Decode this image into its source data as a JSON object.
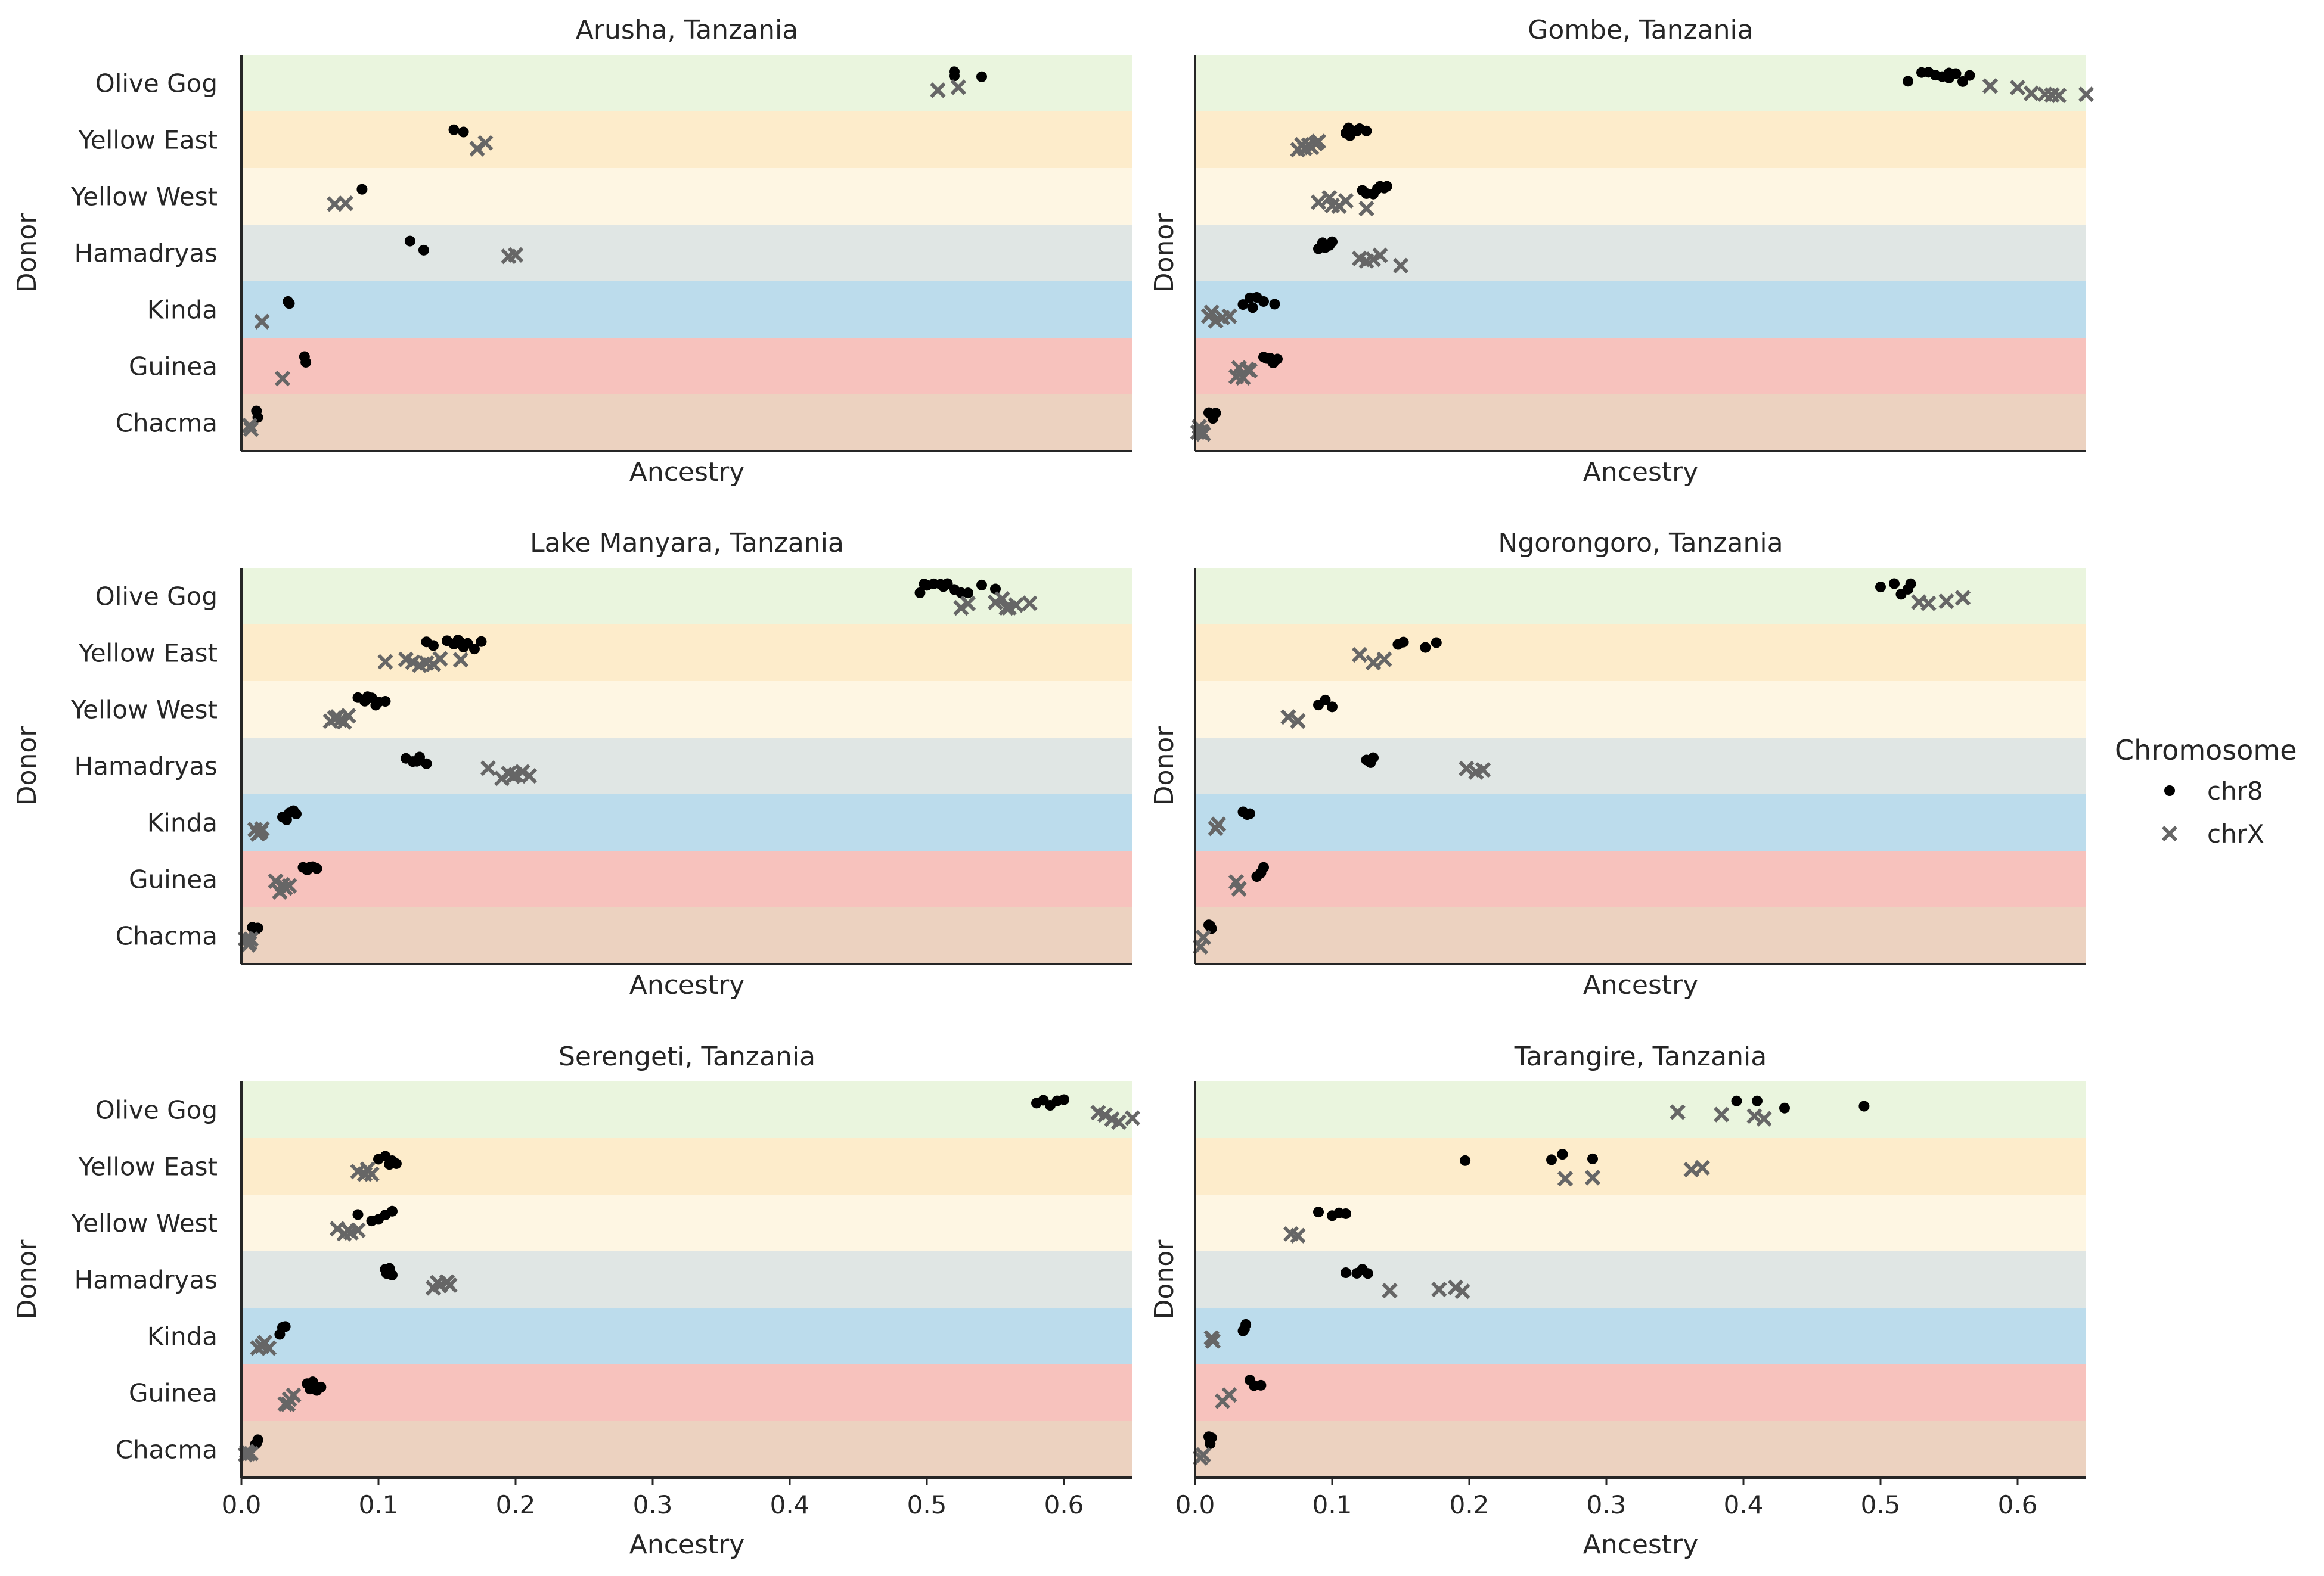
{
  "chart_data": {
    "type": "scatter",
    "donor_categories": [
      "Olive Gog",
      "Yellow East",
      "Yellow West",
      "Hamadryas",
      "Kinda",
      "Guinea",
      "Chacma"
    ],
    "band_colors": {
      "Olive Gog": "#eaf5de",
      "Yellow East": "#fdeccb",
      "Yellow West": "#fef6e3",
      "Hamadryas": "#e0e6e4",
      "Kinda": "#bcdcec",
      "Guinea": "#f7c2bd",
      "Chacma": "#ecd2c0"
    },
    "xlabel": "Ancestry",
    "ylabel": "Donor",
    "xlim": [
      0,
      0.65
    ],
    "x_ticks": [
      0.0,
      0.1,
      0.2,
      0.3,
      0.4,
      0.5,
      0.6
    ],
    "x_tick_labels": [
      "0.0",
      "0.1",
      "0.2",
      "0.3",
      "0.4",
      "0.5",
      "0.6"
    ],
    "grid": false,
    "legend": {
      "title": "Chromosome",
      "position": "right",
      "entries": [
        {
          "name": "chr8",
          "marker": "dot",
          "color": "#000000"
        },
        {
          "name": "chrX",
          "marker": "x",
          "color": "#666666"
        }
      ]
    },
    "panels": [
      {
        "title": "Arusha, Tanzania",
        "series": [
          {
            "name": "chr8",
            "points": {
              "Olive Gog": [
                0.52,
                0.54,
                0.52
              ],
              "Yellow East": [
                0.155,
                0.162
              ],
              "Yellow West": [
                0.088
              ],
              "Hamadryas": [
                0.123,
                0.133
              ],
              "Kinda": [
                0.035,
                0.034
              ],
              "Guinea": [
                0.046,
                0.047
              ],
              "Chacma": [
                0.012,
                0.011
              ]
            }
          },
          {
            "name": "chrX",
            "points": {
              "Olive Gog": [
                0.508,
                0.523
              ],
              "Yellow East": [
                0.172,
                0.178
              ],
              "Yellow West": [
                0.068,
                0.076
              ],
              "Hamadryas": [
                0.195,
                0.2
              ],
              "Kinda": [
                0.015
              ],
              "Guinea": [
                0.03
              ],
              "Chacma": [
                0.006,
                0.007
              ]
            }
          }
        ]
      },
      {
        "title": "Gombe, Tanzania",
        "series": [
          {
            "name": "chr8",
            "points": {
              "Olive Gog": [
                0.52,
                0.53,
                0.54,
                0.545,
                0.55,
                0.555,
                0.535,
                0.56,
                0.565,
                0.55
              ],
              "Yellow East": [
                0.11,
                0.115,
                0.12,
                0.113,
                0.118,
                0.125,
                0.112
              ],
              "Yellow West": [
                0.13,
                0.135,
                0.125,
                0.133,
                0.14,
                0.122,
                0.138
              ],
              "Hamadryas": [
                0.09,
                0.095,
                0.1,
                0.093,
                0.098
              ],
              "Kinda": [
                0.04,
                0.045,
                0.05,
                0.035,
                0.058,
                0.042
              ],
              "Guinea": [
                0.05,
                0.055,
                0.06,
                0.052,
                0.057,
                0.053
              ],
              "Chacma": [
                0.012,
                0.015,
                0.01,
                0.013
              ]
            }
          },
          {
            "name": "chrX",
            "points": {
              "Olive Gog": [
                0.58,
                0.6,
                0.61,
                0.62,
                0.63,
                0.625,
                0.65
              ],
              "Yellow East": [
                0.075,
                0.08,
                0.085,
                0.09,
                0.078,
                0.083,
                0.088
              ],
              "Yellow West": [
                0.09,
                0.1,
                0.105,
                0.11,
                0.125,
                0.098
              ],
              "Hamadryas": [
                0.12,
                0.125,
                0.13,
                0.135,
                0.15
              ],
              "Kinda": [
                0.01,
                0.015,
                0.02,
                0.025,
                0.012
              ],
              "Guinea": [
                0.03,
                0.035,
                0.04,
                0.032,
                0.038
              ],
              "Chacma": [
                0.002,
                0.004,
                0.005,
                0.006,
                0.003
              ]
            }
          }
        ]
      },
      {
        "title": "Lake Manyara, Tanzania",
        "series": [
          {
            "name": "chr8",
            "points": {
              "Olive Gog": [
                0.495,
                0.5,
                0.505,
                0.51,
                0.515,
                0.52,
                0.525,
                0.53,
                0.54,
                0.55,
                0.498,
                0.512
              ],
              "Yellow East": [
                0.14,
                0.15,
                0.155,
                0.16,
                0.165,
                0.17,
                0.175,
                0.135,
                0.158,
                0.162
              ],
              "Yellow West": [
                0.085,
                0.09,
                0.095,
                0.1,
                0.105,
                0.092,
                0.098
              ],
              "Hamadryas": [
                0.12,
                0.125,
                0.13,
                0.135,
                0.128
              ],
              "Kinda": [
                0.03,
                0.035,
                0.04,
                0.038,
                0.033
              ],
              "Guinea": [
                0.045,
                0.05,
                0.055,
                0.048,
                0.052
              ],
              "Chacma": [
                0.01,
                0.012,
                0.008,
                0.011
              ]
            }
          },
          {
            "name": "chrX",
            "points": {
              "Olive Gog": [
                0.525,
                0.53,
                0.55,
                0.555,
                0.56,
                0.565,
                0.575,
                0.558
              ],
              "Yellow East": [
                0.105,
                0.12,
                0.13,
                0.14,
                0.145,
                0.16,
                0.125,
                0.135
              ],
              "Yellow West": [
                0.065,
                0.07,
                0.075,
                0.068,
                0.072,
                0.078
              ],
              "Hamadryas": [
                0.18,
                0.19,
                0.195,
                0.2,
                0.205,
                0.21,
                0.198
              ],
              "Kinda": [
                0.01,
                0.015,
                0.012,
                0.014
              ],
              "Guinea": [
                0.025,
                0.03,
                0.035,
                0.028,
                0.032
              ],
              "Chacma": [
                0.003,
                0.005,
                0.007,
                0.004,
                0.006
              ]
            }
          }
        ]
      },
      {
        "title": "Ngorongoro, Tanzania",
        "series": [
          {
            "name": "chr8",
            "points": {
              "Olive Gog": [
                0.5,
                0.51,
                0.515,
                0.52,
                0.522
              ],
              "Yellow East": [
                0.148,
                0.152,
                0.168,
                0.176
              ],
              "Yellow West": [
                0.09,
                0.095,
                0.1
              ],
              "Hamadryas": [
                0.125,
                0.13,
                0.128
              ],
              "Kinda": [
                0.035,
                0.04,
                0.038
              ],
              "Guinea": [
                0.045,
                0.048,
                0.05
              ],
              "Chacma": [
                0.01,
                0.012,
                0.011
              ]
            }
          },
          {
            "name": "chrX",
            "points": {
              "Olive Gog": [
                0.528,
                0.535,
                0.548,
                0.56
              ],
              "Yellow East": [
                0.12,
                0.13,
                0.138
              ],
              "Yellow West": [
                0.068,
                0.075
              ],
              "Hamadryas": [
                0.198,
                0.205,
                0.21
              ],
              "Kinda": [
                0.015,
                0.017
              ],
              "Guinea": [
                0.03,
                0.032
              ],
              "Chacma": [
                0.004,
                0.006
              ]
            }
          }
        ]
      },
      {
        "title": "Serengeti, Tanzania",
        "series": [
          {
            "name": "chr8",
            "points": {
              "Olive Gog": [
                0.58,
                0.585,
                0.595,
                0.6,
                0.59
              ],
              "Yellow East": [
                0.1,
                0.105,
                0.11,
                0.113,
                0.108
              ],
              "Yellow West": [
                0.085,
                0.095,
                0.1,
                0.105,
                0.11
              ],
              "Hamadryas": [
                0.105,
                0.108,
                0.11,
                0.106
              ],
              "Kinda": [
                0.028,
                0.032,
                0.03
              ],
              "Guinea": [
                0.048,
                0.052,
                0.055,
                0.058,
                0.05
              ],
              "Chacma": [
                0.01,
                0.012,
                0.011
              ]
            }
          },
          {
            "name": "chrX",
            "points": {
              "Olive Gog": [
                0.625,
                0.635,
                0.64,
                0.65,
                0.63
              ],
              "Yellow East": [
                0.085,
                0.09,
                0.095,
                0.092
              ],
              "Yellow West": [
                0.07,
                0.075,
                0.08,
                0.085,
                0.078
              ],
              "Hamadryas": [
                0.14,
                0.145,
                0.15,
                0.143,
                0.152
              ],
              "Kinda": [
                0.012,
                0.015,
                0.02,
                0.017
              ],
              "Guinea": [
                0.032,
                0.035,
                0.038,
                0.034
              ],
              "Chacma": [
                0.003,
                0.005,
                0.007,
                0.004
              ]
            }
          }
        ]
      },
      {
        "title": "Tarangire, Tanzania",
        "series": [
          {
            "name": "chr8",
            "points": {
              "Olive Gog": [
                0.395,
                0.41,
                0.43,
                0.488
              ],
              "Yellow East": [
                0.197,
                0.26,
                0.268,
                0.29
              ],
              "Yellow West": [
                0.09,
                0.1,
                0.11,
                0.105
              ],
              "Hamadryas": [
                0.11,
                0.118,
                0.122,
                0.126
              ],
              "Kinda": [
                0.035,
                0.036,
                0.037
              ],
              "Guinea": [
                0.04,
                0.043,
                0.048
              ],
              "Chacma": [
                0.01,
                0.011,
                0.012
              ]
            }
          },
          {
            "name": "chrX",
            "points": {
              "Olive Gog": [
                0.352,
                0.384,
                0.408,
                0.415
              ],
              "Yellow East": [
                0.27,
                0.29,
                0.362,
                0.37
              ],
              "Yellow West": [
                0.07,
                0.075
              ],
              "Hamadryas": [
                0.142,
                0.178,
                0.19,
                0.195
              ],
              "Kinda": [
                0.012,
                0.013
              ],
              "Guinea": [
                0.02,
                0.025
              ],
              "Chacma": [
                0.004,
                0.006
              ]
            }
          }
        ]
      }
    ]
  }
}
